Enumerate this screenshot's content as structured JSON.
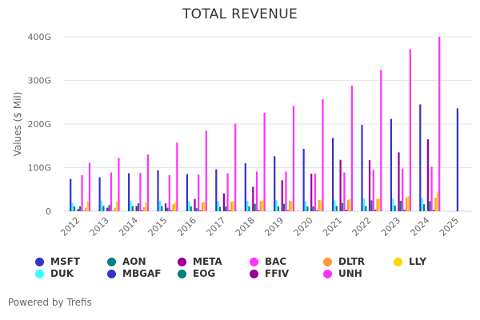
{
  "chart_data": {
    "type": "bar",
    "title": "TOTAL REVENUE",
    "xlabel": "",
    "ylabel": "Values ($ Mil)",
    "ylim": [
      0,
      400
    ],
    "y_ticks": [
      {
        "value": 0,
        "label": "0"
      },
      {
        "value": 100,
        "label": "100G"
      },
      {
        "value": 200,
        "label": "200G"
      },
      {
        "value": 300,
        "label": "300G"
      },
      {
        "value": 400,
        "label": "400G"
      }
    ],
    "grid": true,
    "legend_position": "bottom",
    "categories": [
      "2012",
      "2013",
      "2014",
      "2015",
      "2016",
      "2017",
      "2018",
      "2019",
      "2020",
      "2021",
      "2022",
      "2023",
      "2024",
      "2025"
    ],
    "series": [
      {
        "name": "MSFT",
        "color": "#3333cc",
        "values": [
          74,
          78,
          87,
          94,
          85,
          96,
          110,
          126,
          143,
          168,
          198,
          212,
          245,
          null
        ]
      },
      {
        "name": "DUK",
        "color": "#33ffff",
        "values": [
          19,
          24,
          24,
          24,
          23,
          23,
          24,
          25,
          23,
          25,
          29,
          29,
          30,
          null
        ]
      },
      {
        "name": "AON",
        "color": "#008080",
        "values": [
          11,
          12,
          12,
          12,
          11,
          10,
          11,
          11,
          11,
          12,
          12,
          13,
          16,
          null
        ]
      },
      {
        "name": "MBGAF",
        "color": "#3333cc",
        "values": [
          null,
          null,
          null,
          null,
          null,
          null,
          null,
          null,
          null,
          null,
          null,
          null,
          null,
          236
        ]
      },
      {
        "name": "META",
        "color": "#990099",
        "values": [
          5,
          8,
          12,
          18,
          28,
          41,
          56,
          71,
          86,
          118,
          117,
          135,
          165,
          null
        ]
      },
      {
        "name": "EOG",
        "color": "#008080",
        "values": [
          11,
          14,
          18,
          8,
          7,
          11,
          17,
          17,
          11,
          19,
          25,
          24,
          23,
          null
        ]
      },
      {
        "name": "BAC",
        "color": "#ff33ff",
        "values": [
          83,
          89,
          88,
          83,
          84,
          87,
          91,
          91,
          86,
          89,
          95,
          98,
          102,
          null
        ]
      },
      {
        "name": "FFIV",
        "color": "#990099",
        "values": [
          1,
          1,
          2,
          2,
          2,
          2,
          2,
          2,
          2,
          3,
          3,
          3,
          3,
          null
        ]
      },
      {
        "name": "DLTR",
        "color": "#ff9933",
        "values": [
          8,
          8,
          9,
          16,
          20,
          22,
          23,
          24,
          26,
          26,
          28,
          31,
          31,
          null
        ]
      },
      {
        "name": "LLY",
        "color": "#ffd700",
        "values": [
          23,
          23,
          20,
          20,
          21,
          23,
          25,
          22,
          25,
          28,
          29,
          34,
          45,
          null
        ]
      },
      {
        "name": "UNH",
        "color": "#ff33ff",
        "values": [
          111,
          122,
          130,
          157,
          185,
          201,
          226,
          242,
          257,
          288,
          324,
          372,
          400,
          null
        ]
      }
    ]
  },
  "legend": [
    {
      "label": "MSFT",
      "color": "#3333cc"
    },
    {
      "label": "AON",
      "color": "#008080"
    },
    {
      "label": "META",
      "color": "#990099"
    },
    {
      "label": "BAC",
      "color": "#ff33ff"
    },
    {
      "label": "DLTR",
      "color": "#ff9933"
    },
    {
      "label": "LLY",
      "color": "#ffd700"
    },
    {
      "label": "DUK",
      "color": "#33ffff"
    },
    {
      "label": "MBGAF",
      "color": "#3333cc"
    },
    {
      "label": "EOG",
      "color": "#008080"
    },
    {
      "label": "FFIV",
      "color": "#990099"
    },
    {
      "label": "UNH",
      "color": "#ff33ff"
    }
  ],
  "footer": {
    "powered_by": "Powered by Trefis"
  }
}
